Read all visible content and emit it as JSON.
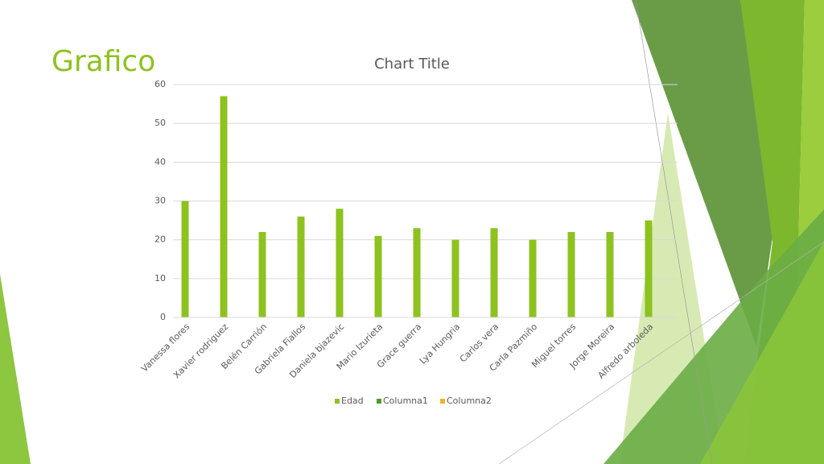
{
  "slide_title": "Grafico",
  "chart_data": {
    "type": "bar",
    "title": "Chart Title",
    "categories": [
      "Vanessa flores",
      "Xavier rodriguez",
      "Belén Carrión",
      "Gabriela Fiallos",
      "Daniela bjazevic",
      "Mario Izurieta",
      "Grace guerra",
      "Lya Hungria",
      "Carlos vera",
      "Carla Pazmiño",
      "Miguel torres",
      "Jorge Moreira",
      "Alfredo arboleda"
    ],
    "series": [
      {
        "name": "Edad",
        "color": "#8dc21f",
        "values": [
          30,
          57,
          22,
          26,
          28,
          21,
          23,
          20,
          23,
          20,
          22,
          22,
          25
        ]
      },
      {
        "name": "Columna1",
        "color": "#4e9a2a",
        "values": [
          null,
          null,
          null,
          null,
          null,
          null,
          null,
          null,
          null,
          null,
          null,
          null,
          null
        ]
      },
      {
        "name": "Columna2",
        "color": "#f0b429",
        "values": [
          null,
          null,
          null,
          null,
          null,
          null,
          null,
          null,
          null,
          null,
          null,
          null,
          null
        ]
      }
    ],
    "ylim": [
      0,
      60
    ],
    "yticks": [
      0,
      10,
      20,
      30,
      40,
      50,
      60
    ],
    "grid": true,
    "legend": "bottom"
  }
}
